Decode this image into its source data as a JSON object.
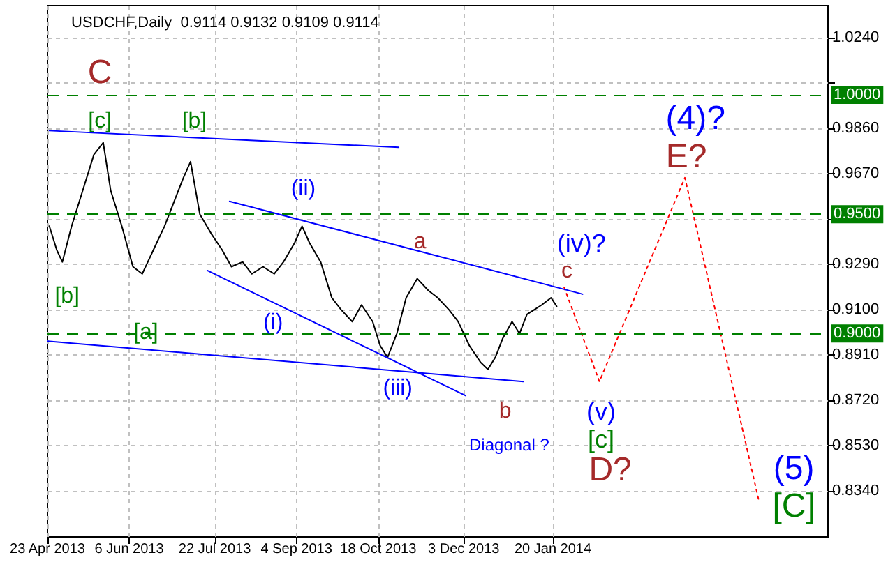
{
  "chart_data": {
    "type": "line",
    "title": "USDCHF,Daily  0.9114 0.9132 0.9109 0.9114",
    "marker": "none",
    "grid": true,
    "xlim": [
      "2013-04-23",
      "2014-06-17"
    ],
    "xticks": [
      {
        "value": "2013-04-23",
        "label": "23 Apr 2013"
      },
      {
        "value": "2013-06-06",
        "label": "6 Jun 2013"
      },
      {
        "value": "2013-07-22",
        "label": "22 Jul 2013"
      },
      {
        "value": "2013-09-04",
        "label": "4 Sep 2013"
      },
      {
        "value": "2013-10-18",
        "label": "18 Oct 2013"
      },
      {
        "value": "2013-12-03",
        "label": "3 Dec 2013"
      },
      {
        "value": "2014-01-20",
        "label": "20 Jan 2014"
      }
    ],
    "ylim": [
      0.8148,
      1.0374
    ],
    "yticks": [
      {
        "value": 0.834,
        "label": "0.8340"
      },
      {
        "value": 0.853,
        "label": "0.8530"
      },
      {
        "value": 0.872,
        "label": "0.8720"
      },
      {
        "value": 0.891,
        "label": "0.8910"
      },
      {
        "value": 0.91,
        "label": "0.9100"
      },
      {
        "value": 0.929,
        "label": "0.9290"
      },
      {
        "value": 0.948,
        "label": null
      },
      {
        "value": 0.967,
        "label": "0.9670"
      },
      {
        "value": 0.986,
        "label": "0.9860"
      },
      {
        "value": 1.005,
        "label": null
      },
      {
        "value": 1.024,
        "label": "1.0240"
      }
    ],
    "series": [
      {
        "color": "#000000",
        "line_style": "solid",
        "x": [
          "2013-04-24",
          "2013-04-28",
          "2013-05-01",
          "2013-05-06",
          "2013-05-12",
          "2013-05-18",
          "2013-05-23",
          "2013-05-27",
          "2013-06-02",
          "2013-06-08",
          "2013-06-13",
          "2013-06-19",
          "2013-06-25",
          "2013-06-30",
          "2013-07-05",
          "2013-07-09",
          "2013-07-14",
          "2013-07-20",
          "2013-07-26",
          "2013-07-31",
          "2013-08-06",
          "2013-08-11",
          "2013-08-17",
          "2013-08-23",
          "2013-08-28",
          "2013-09-03",
          "2013-09-07",
          "2013-09-11",
          "2013-09-17",
          "2013-09-23",
          "2013-09-28",
          "2013-10-04",
          "2013-10-09",
          "2013-10-15",
          "2013-10-19",
          "2013-10-23",
          "2013-10-28",
          "2013-11-02",
          "2013-11-08",
          "2013-11-14",
          "2013-11-19",
          "2013-11-25",
          "2013-11-30",
          "2013-12-06",
          "2013-12-12",
          "2013-12-16",
          "2013-12-20",
          "2013-12-24",
          "2013-12-29",
          "2014-01-02",
          "2014-01-06",
          "2014-01-10",
          "2014-01-14",
          "2014-01-19",
          "2014-01-22"
        ],
        "values": [
          0.945,
          0.935,
          0.93,
          0.945,
          0.96,
          0.975,
          0.98,
          0.96,
          0.945,
          0.928,
          0.925,
          0.935,
          0.945,
          0.955,
          0.965,
          0.972,
          0.95,
          0.942,
          0.935,
          0.928,
          0.93,
          0.925,
          0.928,
          0.925,
          0.93,
          0.938,
          0.945,
          0.938,
          0.93,
          0.915,
          0.91,
          0.905,
          0.912,
          0.905,
          0.895,
          0.89,
          0.9,
          0.915,
          0.923,
          0.918,
          0.915,
          0.91,
          0.905,
          0.895,
          0.888,
          0.885,
          0.89,
          0.898,
          0.905,
          0.9,
          0.908,
          0.91,
          0.912,
          0.915,
          0.9114
        ]
      },
      {
        "color": "#ff0000",
        "line_style": "dotted",
        "x": [
          "2014-01-26",
          "2014-02-14",
          "2014-04-01",
          "2014-05-11"
        ],
        "values": [
          0.9194,
          0.8799,
          0.9653,
          0.8293
        ]
      },
      {
        "color": "#0000ff",
        "line_style": "solid",
        "x": [
          "2013-04-24",
          "2013-10-29"
        ],
        "values": [
          0.985,
          0.978
        ]
      },
      {
        "color": "#0000ff",
        "line_style": "solid",
        "x": [
          "2013-07-30",
          "2014-02-05"
        ],
        "values": [
          0.9554,
          0.9165
        ]
      },
      {
        "color": "#0000ff",
        "line_style": "solid",
        "x": [
          "2013-07-18",
          "2013-12-04"
        ],
        "values": [
          0.9264,
          0.874
        ]
      },
      {
        "color": "#0000ff",
        "line_style": "solid",
        "x": [
          "2013-04-23",
          "2014-01-04"
        ],
        "values": [
          0.8968,
          0.8799
        ]
      }
    ],
    "ref_lines": [
      {
        "axis": "y",
        "value": 1.0,
        "label": "1.0000",
        "color": "#008000",
        "line_style": "dashed"
      },
      {
        "axis": "y",
        "value": 0.95,
        "label": "0.9500",
        "color": "#008000",
        "line_style": "dashed"
      },
      {
        "axis": "y",
        "value": 0.9,
        "label": "0.9000",
        "color": "#008000",
        "line_style": "dashed"
      }
    ],
    "annotations": [
      "C",
      "[c]",
      "[b]",
      "(ii)",
      "a",
      "(iv)?",
      "c",
      "(4)?",
      "E?",
      "[b]",
      "[a]",
      "(i)",
      "(iii)",
      "b",
      "Diagonal ?",
      "(v)",
      "[c]",
      "D?",
      "(5)",
      "[C]"
    ]
  }
}
